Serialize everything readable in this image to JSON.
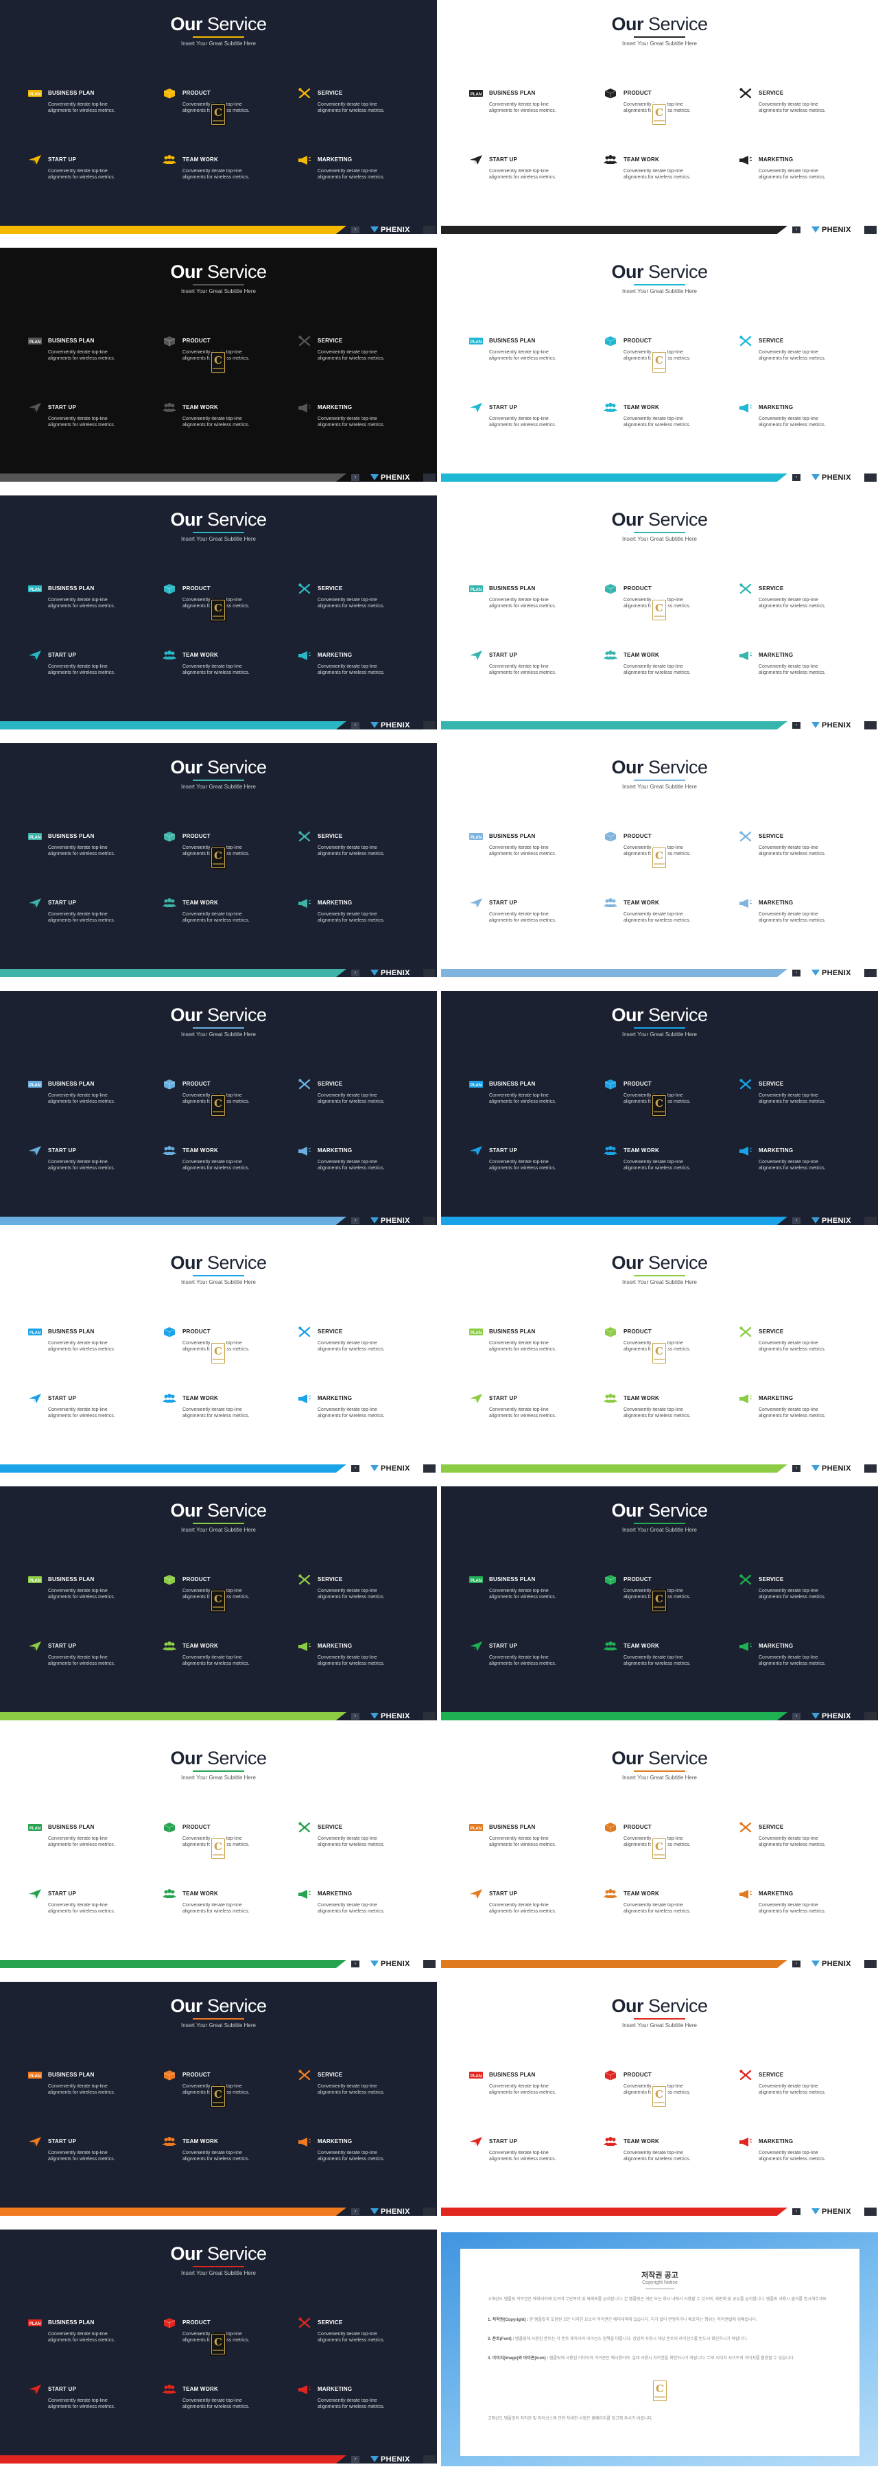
{
  "common": {
    "title_bold": "Our",
    "title_light": "Service",
    "subtitle": "Insert Your Great Subtitle Here",
    "brand": "PHENIX",
    "emblem_letter": "C",
    "services": [
      {
        "label": "BUSINESS PLAN",
        "icon": "business-plan-icon",
        "desc": "Conveniently iterate top-line alignments for wireless metrics."
      },
      {
        "label": "PRODUCT",
        "icon": "product-box-icon",
        "desc": "Conveniently iterate top-line alignments for wireless metrics."
      },
      {
        "label": "SERVICE",
        "icon": "tools-icon",
        "desc": "Conveniently iterate top-line alignments for wireless metrics."
      },
      {
        "label": "START UP",
        "icon": "paper-plane-icon",
        "desc": "Conveniently iterate top-line alignments for wireless metrics."
      },
      {
        "label": "TEAM WORK",
        "icon": "team-icon",
        "desc": "Conveniently iterate top-line alignments for wireless metrics."
      },
      {
        "label": "MARKETING",
        "icon": "megaphone-icon",
        "desc": "Conveniently iterate top-line alignments for wireless metrics."
      }
    ]
  },
  "slides": [
    {
      "theme": "dark",
      "accent": "#f5b800"
    },
    {
      "theme": "light",
      "accent": "#222222"
    },
    {
      "theme": "black",
      "accent": "#555555"
    },
    {
      "theme": "light",
      "accent": "#1fb8d4"
    },
    {
      "theme": "dark",
      "accent": "#2ab7c4"
    },
    {
      "theme": "light",
      "accent": "#35b5ae"
    },
    {
      "theme": "dark",
      "accent": "#3fb3a8"
    },
    {
      "theme": "light",
      "accent": "#7fb4de"
    },
    {
      "theme": "dark",
      "accent": "#6aaee0"
    },
    {
      "theme": "dark",
      "accent": "#1aa3e8"
    },
    {
      "theme": "light",
      "accent": "#1aa3e8"
    },
    {
      "theme": "light",
      "accent": "#8ccc45"
    },
    {
      "theme": "dark",
      "accent": "#8ccc45"
    },
    {
      "theme": "dark",
      "accent": "#1fb054"
    },
    {
      "theme": "light",
      "accent": "#27a350"
    },
    {
      "theme": "light",
      "accent": "#e07a1f"
    },
    {
      "theme": "dark",
      "accent": "#f07a20"
    },
    {
      "theme": "light",
      "accent": "#e0261f"
    },
    {
      "theme": "dark",
      "accent": "#e0261f"
    }
  ],
  "copyright": {
    "title": "저작권 공고",
    "subtitle": "Copyright Notice",
    "p1": "고해상도 템플릿 저작권은 에피테마에 있으며 무단복제 및 재배포를 금지합니다. 본 템플릿은 개인 또는 회사 내에서 사용할 수 있으며, 재판매 및 공유를 금지합니다. 템플릿 사용시 출처를 명시해주세요.",
    "p2_head": "1. 저작권(Copyright) :",
    "p2": "본 템플릿과 포함된 모든 디자인 요소의 저작권은 에피테마에 있습니다. 허가 없이 변형하거나 배포하는 행위는 저작권법에 위배됩니다.",
    "p3_head": "2. 폰트(Font) :",
    "p3": "템플릿에 사용된 폰트는 각 폰트 제작사의 라이선스 정책을 따릅니다. 상업적 사용시 해당 폰트의 라이선스를 반드시 확인하시기 바랍니다.",
    "p4_head": "3. 이미지(Image)와 아이콘(Icon) :",
    "p4": "템플릿에 사용된 이미지와 아이콘은 예시용이며, 실제 사용시 저작권을 확인하시기 바랍니다. 무료 이미지 사이트의 이미지를 활용할 수 있습니다.",
    "p5": "고해상도 템플릿의 저작권 및 라이선스에 관한 자세한 사항은 홈페이지를 참고해 주시기 바랍니다."
  }
}
